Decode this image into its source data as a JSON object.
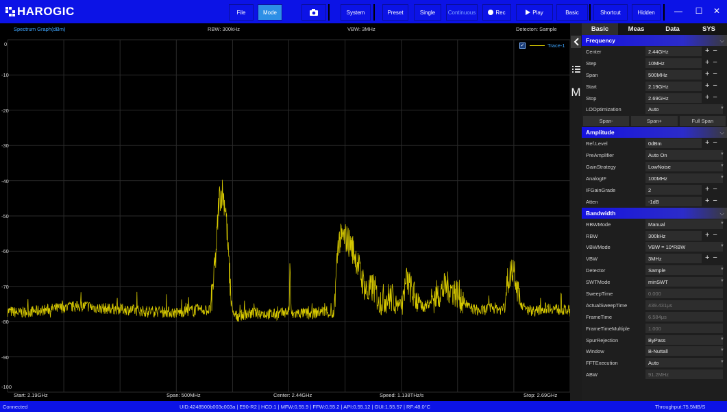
{
  "app": {
    "name": "HAROGIC"
  },
  "toolbar": {
    "items": [
      {
        "label": "File",
        "active": false
      },
      {
        "label": "Mode",
        "active": true
      },
      {
        "label": "camera-icon",
        "active": false
      },
      {
        "label": "System",
        "active": false
      },
      {
        "label": "Preset",
        "active": false
      },
      {
        "label": "Single",
        "active": false
      },
      {
        "label": "Continuous",
        "active": false
      },
      {
        "label": "Rec",
        "active": false
      },
      {
        "label": "Play",
        "active": false
      },
      {
        "label": "Basic",
        "active": false
      },
      {
        "label": "Shortcut",
        "active": false
      },
      {
        "label": "Hidden",
        "active": false
      }
    ]
  },
  "graph": {
    "title": "Spectrum Graph(dBm)",
    "rbw": "RBW: 300kHz",
    "vbw": "VBW: 3MHz",
    "detector": "Detecton: Sample",
    "start": "Start: 2.19GHz",
    "span": "Span: 500MHz",
    "center": "Center: 2.44GHz",
    "speed": "Speed: 1.138THz/s",
    "stop": "Stop: 2.69GHz",
    "legend": {
      "trace": "Trace-1",
      "checked": true,
      "color": "#d6c800"
    }
  },
  "chart_data": {
    "type": "line",
    "xlabel": "",
    "ylabel": "",
    "x_range": [
      2.19,
      2.69
    ],
    "ylim": [
      -100,
      0
    ],
    "yticks": [
      0,
      -10,
      -20,
      -30,
      -40,
      -50,
      -60,
      -70,
      -80,
      -90,
      -100
    ],
    "grid": true,
    "series": [
      {
        "name": "Trace-1",
        "color": "#d6c800",
        "x": [
          2.19,
          2.2,
          2.22,
          2.24,
          2.26,
          2.27,
          2.29,
          2.31,
          2.33,
          2.34,
          2.35,
          2.36,
          2.37,
          2.372,
          2.375,
          2.378,
          2.381,
          2.384,
          2.386,
          2.388,
          2.39,
          2.395,
          2.4,
          2.41,
          2.42,
          2.43,
          2.44,
          2.441,
          2.442,
          2.443,
          2.45,
          2.46,
          2.47,
          2.48,
          2.484,
          2.49,
          2.495,
          2.5,
          2.505,
          2.51,
          2.515,
          2.52,
          2.53,
          2.54,
          2.545,
          2.55,
          2.56,
          2.57,
          2.58,
          2.59,
          2.6,
          2.61,
          2.62,
          2.63,
          2.635,
          2.64,
          2.645,
          2.65,
          2.66,
          2.67,
          2.68,
          2.69
        ],
        "values": [
          -77,
          -77.5,
          -76.8,
          -76,
          -75.5,
          -76.2,
          -76.4,
          -77,
          -77.2,
          -77.5,
          -77,
          -76.5,
          -76.8,
          -72,
          -62,
          -45,
          -43,
          -48,
          -60,
          -70,
          -78,
          -78.5,
          -78,
          -77.5,
          -77.8,
          -78,
          -77,
          -67,
          -77,
          -78,
          -77.5,
          -77.8,
          -77,
          -78,
          -57,
          -56,
          -58,
          -62,
          -68,
          -72,
          -70,
          -74,
          -73,
          -75,
          -68,
          -72,
          -76,
          -73,
          -70,
          -72,
          -76,
          -77,
          -76,
          -76.5,
          -68,
          -64,
          -74,
          -76.5,
          -77,
          -76,
          -76.5,
          -77
        ]
      }
    ]
  },
  "panel": {
    "tabs": [
      {
        "label": "Basic",
        "active": true
      },
      {
        "label": "Meas",
        "active": false
      },
      {
        "label": "Data",
        "active": false
      },
      {
        "label": "SYS",
        "active": false
      }
    ],
    "frequency": {
      "title": "Frequency",
      "rows": [
        {
          "label": "Center",
          "value": "2.44GHz",
          "kind": "pm"
        },
        {
          "label": "Step",
          "value": "10MHz",
          "kind": "pm"
        },
        {
          "label": "Span",
          "value": "500MHz",
          "kind": "pm"
        },
        {
          "label": "Start",
          "value": "2.19GHz",
          "kind": "pm"
        },
        {
          "label": "Stop",
          "value": "2.69GHz",
          "kind": "pm"
        },
        {
          "label": "LOOptimization",
          "value": "Auto",
          "kind": "dd"
        }
      ],
      "buttons": [
        "Span-",
        "Span+",
        "Full Span"
      ]
    },
    "amplitude": {
      "title": "Amplitude",
      "rows": [
        {
          "label": "Ref.Level",
          "value": "0dBm",
          "kind": "pm"
        },
        {
          "label": "PreAmplifier",
          "value": "Auto On",
          "kind": "dd"
        },
        {
          "label": "GainStrategy",
          "value": "LowNoise",
          "kind": "dd"
        },
        {
          "label": "AnalogIF",
          "value": "100MHz",
          "kind": "dd"
        },
        {
          "label": "IFGainGrade",
          "value": "2",
          "kind": "pm"
        },
        {
          "label": "Atten",
          "value": "-1dB",
          "kind": "pm"
        }
      ]
    },
    "bandwidth": {
      "title": "Bandwidth",
      "rows": [
        {
          "label": "RBWMode",
          "value": "Manual",
          "kind": "dd"
        },
        {
          "label": "RBW",
          "value": "300kHz",
          "kind": "pm"
        },
        {
          "label": "VBWMode",
          "value": "VBW = 10*RBW",
          "kind": "dd"
        },
        {
          "label": "VBW",
          "value": "3MHz",
          "kind": "pm"
        },
        {
          "label": "Detector",
          "value": "Sample",
          "kind": "dd"
        },
        {
          "label": "SWTMode",
          "value": "minSWT",
          "kind": "dd"
        },
        {
          "label": "SweepTime",
          "value": "0.000",
          "kind": "ro"
        },
        {
          "label": "ActualSweepTime",
          "value": "439.431μs",
          "kind": "ro"
        },
        {
          "label": "FrameTime",
          "value": "6.584μs",
          "kind": "ro"
        },
        {
          "label": "FrameTimeMultiple",
          "value": "1.000",
          "kind": "ro"
        },
        {
          "label": "SpurRejection",
          "value": "ByPass",
          "kind": "dd"
        },
        {
          "label": "Window",
          "value": "B-Nuttall",
          "kind": "dd"
        },
        {
          "label": "FFTExecution",
          "value": "Auto",
          "kind": "dd"
        },
        {
          "label": "ABW",
          "value": "91.2MHz",
          "kind": "ro"
        }
      ]
    }
  },
  "status": {
    "left": "Connected",
    "center": "UID:4248500b003c003a | E90-R2 | HCD:1 | MFW:0.55.9 | FFW:0.55.2 | API:0.55.12 | GUI:1.55.57 | RF:48.0°C",
    "right": "Throughput:75.5MB/S"
  }
}
